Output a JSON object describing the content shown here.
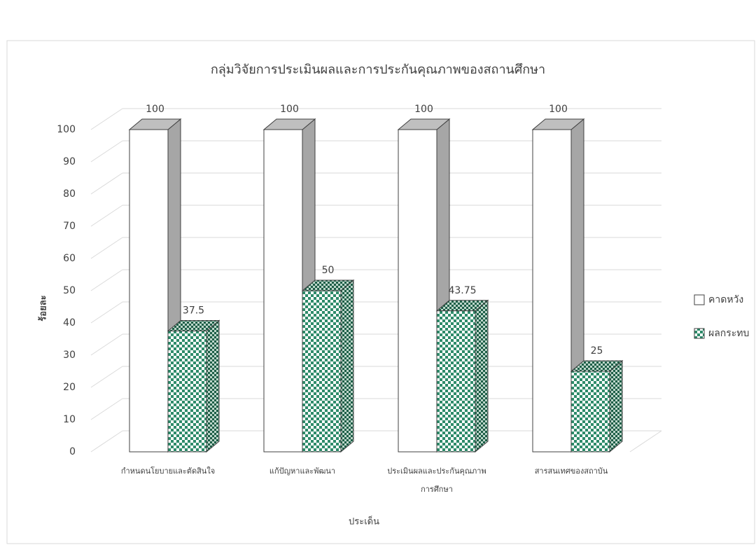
{
  "chart_data": {
    "type": "bar3d",
    "title": "กลุ่มวิจัยการประเมินผลและการประกันคุณภาพของสถานศึกษา",
    "y_label": "ร้อยละ",
    "x_label": "ประเด็น",
    "categories": [
      "กำหนดนโยบายและตัดสินใจ",
      "แก้ปัญหาและพัฒนา",
      "ประเมินผลและประกันคุณภาพการศึกษา",
      "สารสนเทศของสถาบัน"
    ],
    "series": [
      {
        "name": "คาดหวัง",
        "color": "#ffffff",
        "values": [
          100,
          100,
          100,
          100
        ]
      },
      {
        "name": "ผลกระทบ",
        "color": "#2e8b6a",
        "values": [
          37.5,
          50,
          43.75,
          25
        ]
      }
    ],
    "ylim": [
      0,
      100
    ],
    "yticks": [
      0,
      10,
      20,
      30,
      40,
      50,
      60,
      70,
      80,
      90,
      100
    ],
    "grid": true,
    "legend": "right"
  }
}
